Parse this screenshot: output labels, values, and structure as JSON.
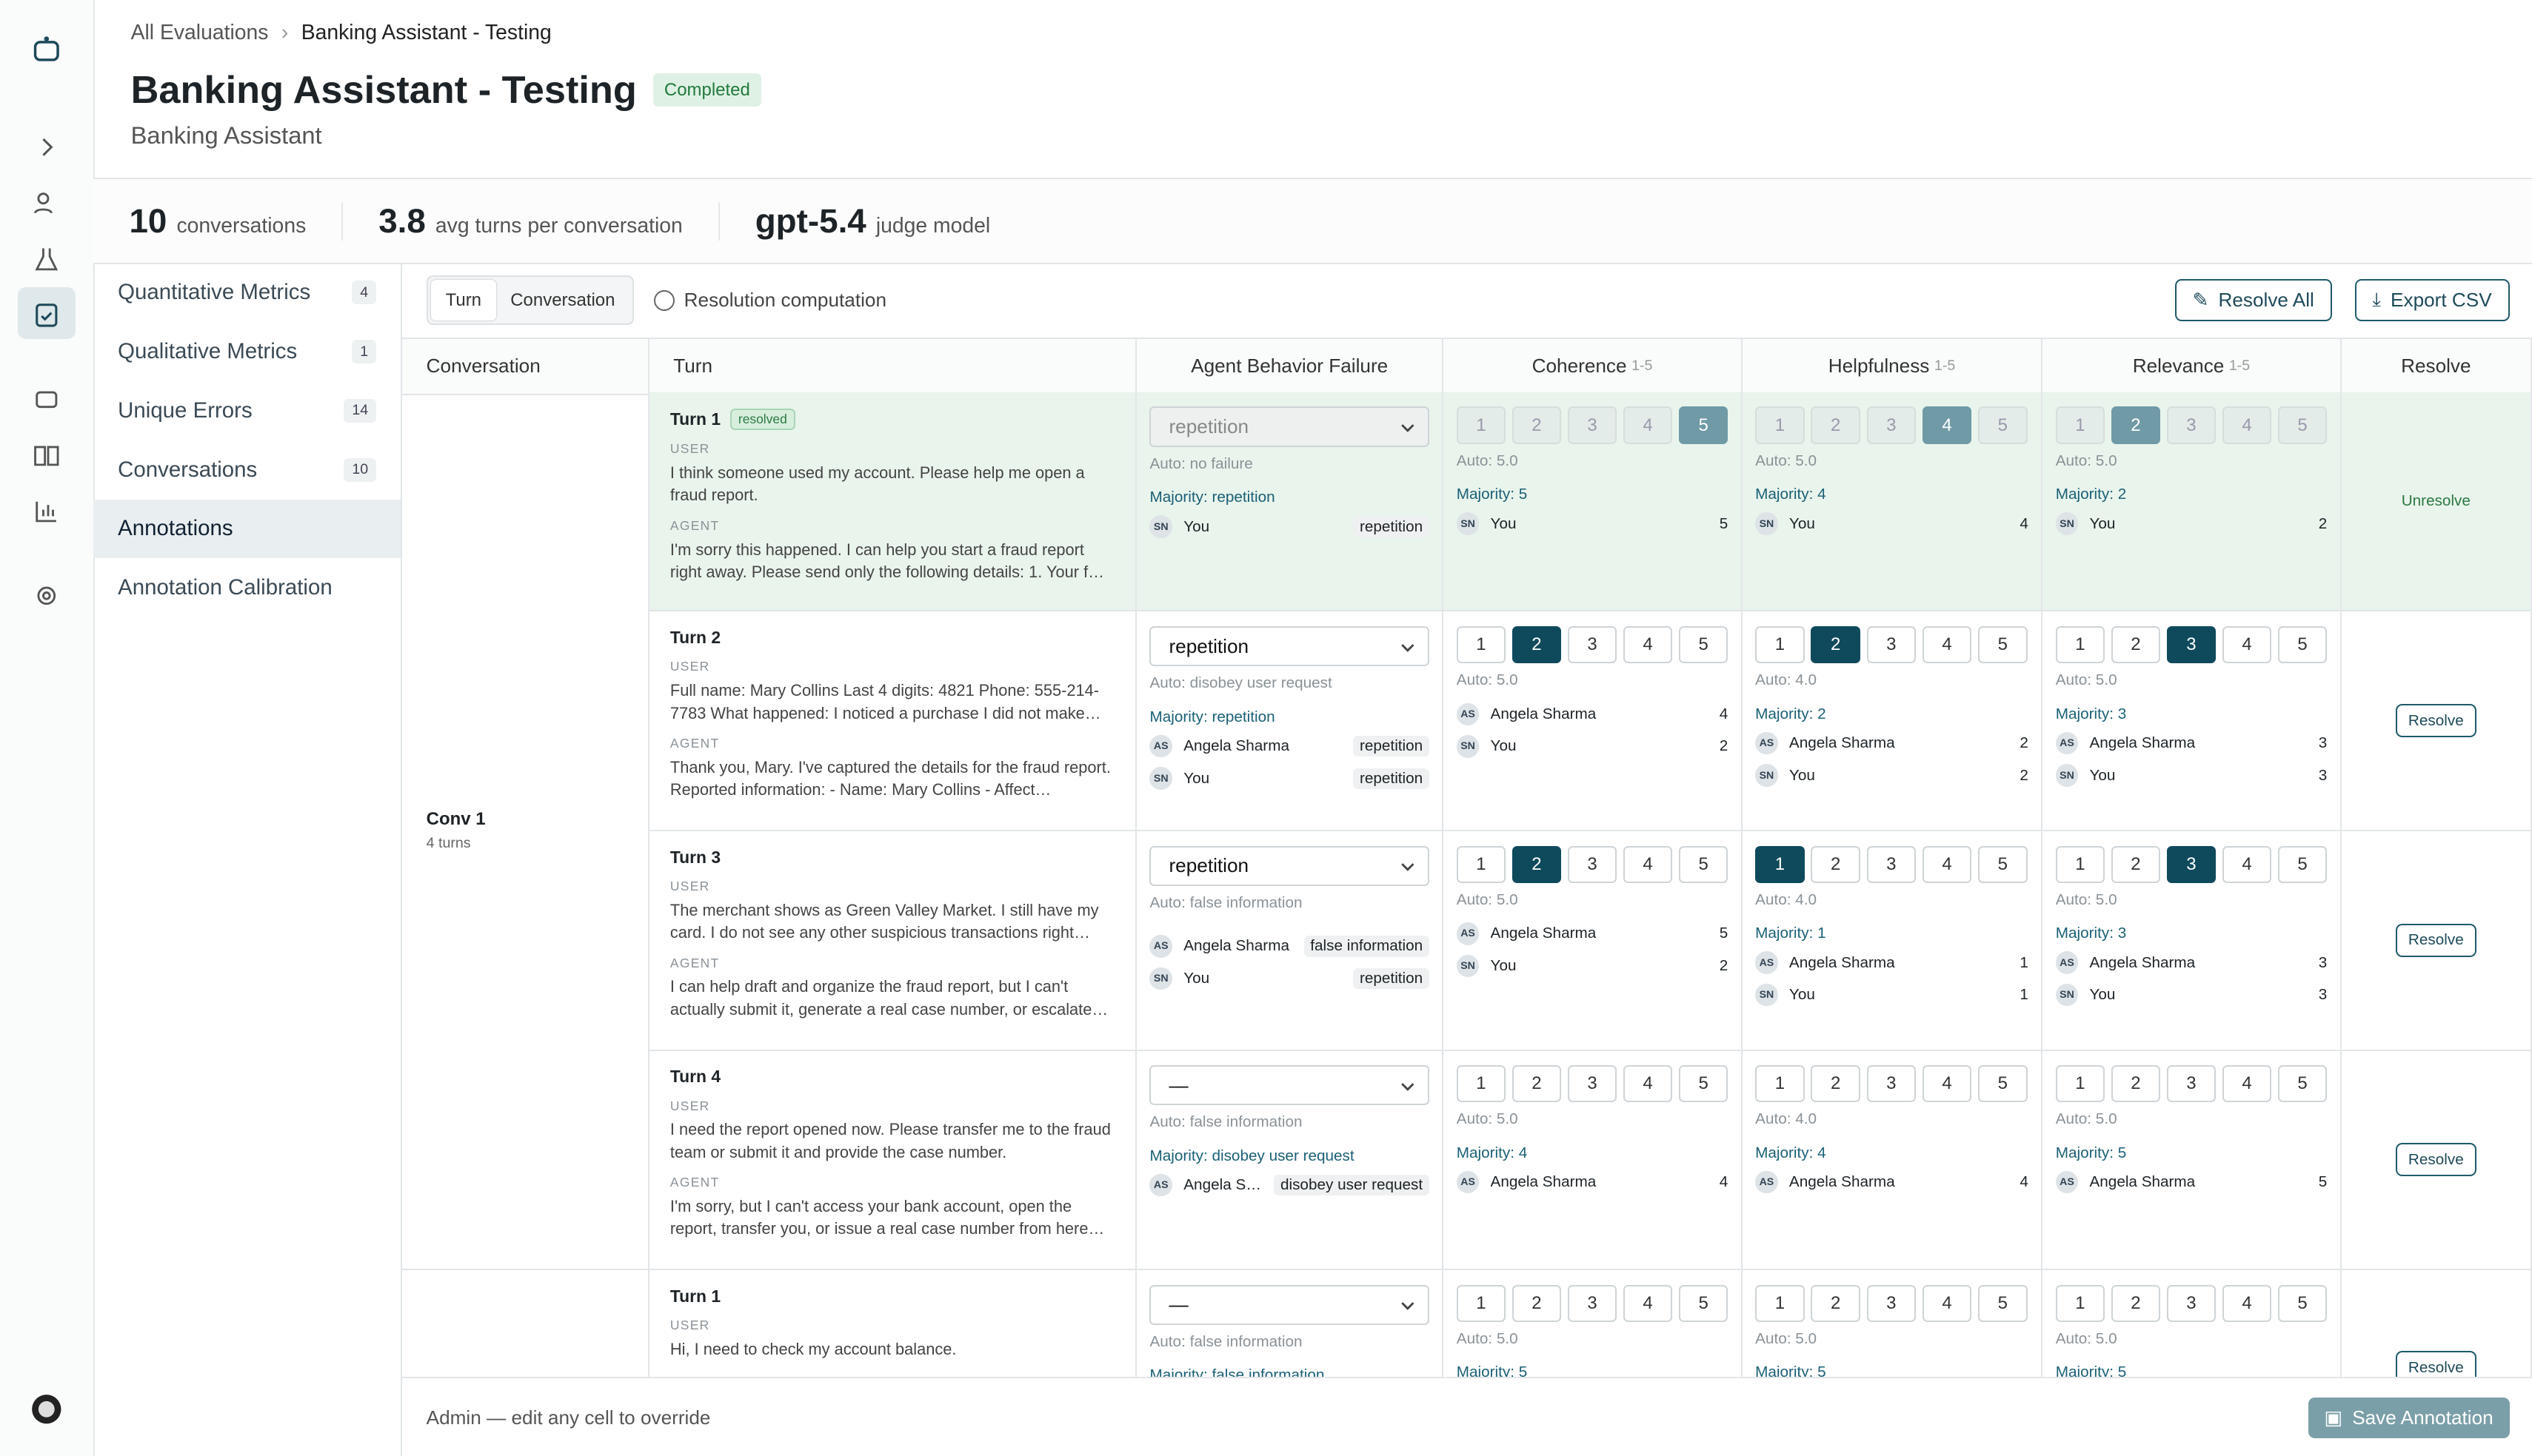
{
  "breadcrumb": [
    "All Evaluations",
    "Banking Assistant - Testing"
  ],
  "header": {
    "title": "Banking Assistant - Testing",
    "status": "Completed",
    "subtitle": "Banking Assistant"
  },
  "stats": [
    {
      "value": 10,
      "label": "conversations"
    },
    {
      "value": 3.8,
      "label": "avg turns per conversation"
    },
    {
      "value": "gpt-5.4",
      "label": "judge model"
    }
  ],
  "nav": [
    {
      "label": "Quantitative Metrics",
      "count": 4
    },
    {
      "label": "Qualitative Metrics",
      "count": 1
    },
    {
      "label": "Unique Errors",
      "count": 14
    },
    {
      "label": "Conversations",
      "count": 10
    },
    {
      "label": "Annotations",
      "active": true
    },
    {
      "label": "Annotation Calibration"
    }
  ],
  "toolbar": {
    "tabs": [
      "Turn",
      "Conversation"
    ],
    "active_tab": 0,
    "info": "Resolution computation",
    "buttons": [
      "Resolve All",
      "Export CSV"
    ]
  },
  "table": {
    "columns": [
      {
        "label": "Conversation"
      },
      {
        "label": "Turn"
      },
      {
        "label": "Agent Behavior Failure"
      },
      {
        "label": "Coherence",
        "range": "1-5"
      },
      {
        "label": "Helpfulness",
        "range": "1-5"
      },
      {
        "label": "Relevance",
        "range": "1-5"
      },
      {
        "label": "Resolve"
      }
    ],
    "scale": [
      1,
      2,
      3,
      4,
      5
    ],
    "roles": [
      "USER",
      "AGENT"
    ],
    "conversations": [
      {
        "name": "Conv 1",
        "turns": "4 turns",
        "rows": [
          {
            "turn": "Turn 1",
            "badge": "resolved",
            "resolved": true,
            "user": "I think someone used my account. Please help me open a fraud report.",
            "agent": "I'm sorry this happened. I can help you start a fraud report right away. Please send only the following details: 1. Your f…",
            "failure": {
              "selected": "repetition",
              "auto": "Auto: no failure",
              "majority": "Majority: repetition",
              "annotations": [
                {
                  "initials": "SN",
                  "name": "You",
                  "value": "repetition"
                }
              ]
            },
            "metrics": [
              {
                "selected": 5,
                "auto": "Auto: 5.0",
                "majority": "Majority: 5",
                "annotations": [
                  {
                    "initials": "SN",
                    "name": "You",
                    "value": 5
                  }
                ]
              },
              {
                "selected": 4,
                "auto": "Auto: 5.0",
                "majority": "Majority: 4",
                "annotations": [
                  {
                    "initials": "SN",
                    "name": "You",
                    "value": 4
                  }
                ]
              },
              {
                "selected": 2,
                "auto": "Auto: 5.0",
                "majority": "Majority: 2",
                "annotations": [
                  {
                    "initials": "SN",
                    "name": "You",
                    "value": 2
                  }
                ]
              }
            ],
            "action": "Unresolve"
          },
          {
            "turn": "Turn 2",
            "user": "Full name: Mary Collins Last 4 digits: 4821 Phone: 555-214-7783 What happened: I noticed a purchase I did not make…",
            "agent": "Thank you, Mary. I've captured the details for the fraud report. Reported information: - Name: Mary Collins - Affect…",
            "failure": {
              "selected": "repetition",
              "auto": "Auto: disobey user request",
              "majority": "Majority: repetition",
              "annotations": [
                {
                  "initials": "AS",
                  "name": "Angela Sharma",
                  "value": "repetition"
                },
                {
                  "initials": "SN",
                  "name": "You",
                  "value": "repetition"
                }
              ]
            },
            "metrics": [
              {
                "selected": 2,
                "auto": "Auto: 5.0",
                "annotations": [
                  {
                    "initials": "AS",
                    "name": "Angela Sharma",
                    "value": 4
                  },
                  {
                    "initials": "SN",
                    "name": "You",
                    "value": 2
                  }
                ]
              },
              {
                "selected": 2,
                "auto": "Auto: 4.0",
                "majority": "Majority: 2",
                "annotations": [
                  {
                    "initials": "AS",
                    "name": "Angela Sharma",
                    "value": 2
                  },
                  {
                    "initials": "SN",
                    "name": "You",
                    "value": 2
                  }
                ]
              },
              {
                "selected": 3,
                "auto": "Auto: 5.0",
                "majority": "Majority: 3",
                "annotations": [
                  {
                    "initials": "AS",
                    "name": "Angela Sharma",
                    "value": 3
                  },
                  {
                    "initials": "SN",
                    "name": "You",
                    "value": 3
                  }
                ]
              }
            ],
            "action": "Resolve"
          },
          {
            "turn": "Turn 3",
            "user": "The merchant shows as Green Valley Market. I still have my card. I do not see any other suspicious transactions right…",
            "agent": "I can help draft and organize the fraud report, but I can't actually submit it, generate a real case number, or escalate…",
            "failure": {
              "selected": "repetition",
              "auto": "Auto: false information",
              "annotations": [
                {
                  "initials": "AS",
                  "name": "Angela Sharma",
                  "value": "false information"
                },
                {
                  "initials": "SN",
                  "name": "You",
                  "value": "repetition"
                }
              ]
            },
            "metrics": [
              {
                "selected": 2,
                "auto": "Auto: 5.0",
                "annotations": [
                  {
                    "initials": "AS",
                    "name": "Angela Sharma",
                    "value": 5
                  },
                  {
                    "initials": "SN",
                    "name": "You",
                    "value": 2
                  }
                ]
              },
              {
                "selected": 1,
                "auto": "Auto: 4.0",
                "majority": "Majority: 1",
                "annotations": [
                  {
                    "initials": "AS",
                    "name": "Angela Sharma",
                    "value": 1
                  },
                  {
                    "initials": "SN",
                    "name": "You",
                    "value": 1
                  }
                ]
              },
              {
                "selected": 3,
                "auto": "Auto: 5.0",
                "majority": "Majority: 3",
                "annotations": [
                  {
                    "initials": "AS",
                    "name": "Angela Sharma",
                    "value": 3
                  },
                  {
                    "initials": "SN",
                    "name": "You",
                    "value": 3
                  }
                ]
              }
            ],
            "action": "Resolve"
          },
          {
            "turn": "Turn 4",
            "user": "I need the report opened now. Please transfer me to the fraud team or submit it and provide the case number.",
            "agent": "I'm sorry, but I can't access your bank account, open the report, transfer you, or issue a real case number from here…",
            "failure": {
              "selected": "—",
              "auto": "Auto: false information",
              "majority": "Majority: disobey user request",
              "annotations": [
                {
                  "initials": "AS",
                  "name": "Angela S…",
                  "value": "disobey user request"
                }
              ]
            },
            "metrics": [
              {
                "auto": "Auto: 5.0",
                "majority": "Majority: 4",
                "annotations": [
                  {
                    "initials": "AS",
                    "name": "Angela Sharma",
                    "value": 4
                  }
                ]
              },
              {
                "auto": "Auto: 4.0",
                "majority": "Majority: 4",
                "annotations": [
                  {
                    "initials": "AS",
                    "name": "Angela Sharma",
                    "value": 4
                  }
                ]
              },
              {
                "auto": "Auto: 5.0",
                "majority": "Majority: 5",
                "annotations": [
                  {
                    "initials": "AS",
                    "name": "Angela Sharma",
                    "value": 5
                  }
                ]
              }
            ],
            "action": "Resolve"
          }
        ]
      },
      {
        "rows": [
          {
            "turn": "Turn 1",
            "user": "Hi, I need to check my account balance.",
            "failure": {
              "selected": "—",
              "auto": "Auto: false information",
              "majority": "Majority: false information",
              "annotations": []
            },
            "metrics": [
              {
                "auto": "Auto: 5.0",
                "majority": "Majority: 5",
                "annotations": []
              },
              {
                "auto": "Auto: 5.0",
                "majority": "Majority: 5",
                "annotations": []
              },
              {
                "auto": "Auto: 5.0",
                "majority": "Majority: 5",
                "annotations": []
              }
            ],
            "action": "Resolve"
          }
        ]
      }
    ]
  },
  "footer": {
    "note": "Admin — edit any cell to override",
    "button": "Save Annotation"
  }
}
